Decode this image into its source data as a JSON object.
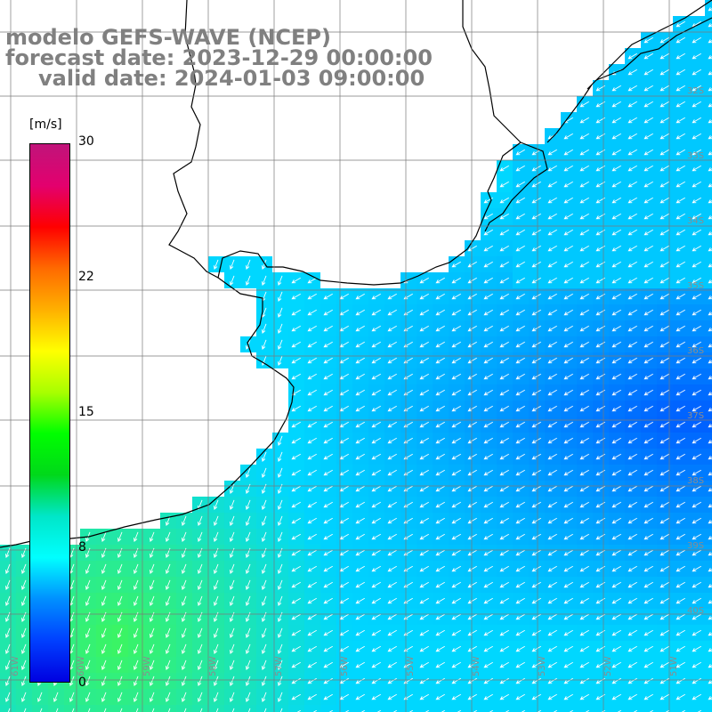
{
  "title": {
    "line1": "modelo GEFS-WAVE (NCEP)",
    "line2": "forecast date: 2023-12-29 00:00:00",
    "line3": "valid date: 2024-01-03 09:00:00"
  },
  "colorbar": {
    "unit": "[m/s]",
    "ticks": [
      "30",
      "22",
      "15",
      "8",
      "0"
    ],
    "tick_values": [
      30,
      22,
      15,
      8,
      0
    ],
    "stops": [
      "#c0147a",
      "#e3006e",
      "#ff0000",
      "#ff6a00",
      "#ffb000",
      "#ffff00",
      "#a8ff00",
      "#00ff00",
      "#00d81a",
      "#00e6c8",
      "#00ffff",
      "#0090ff",
      "#0040ff",
      "#0000e0"
    ]
  },
  "axes": {
    "lon_labels": [
      "61W",
      "60W",
      "59W",
      "58W",
      "57W",
      "56W",
      "55W",
      "54W",
      "53W",
      "52W",
      "51W"
    ],
    "lat_labels": [
      "32S",
      "33S",
      "34S",
      "35S",
      "36S",
      "37S",
      "38S",
      "39S",
      "40S"
    ]
  },
  "field": {
    "variable": "wind speed",
    "arrow_direction": "from east-northeast",
    "land_color": "#ffffff",
    "grid_color": "#7a7a7a"
  }
}
